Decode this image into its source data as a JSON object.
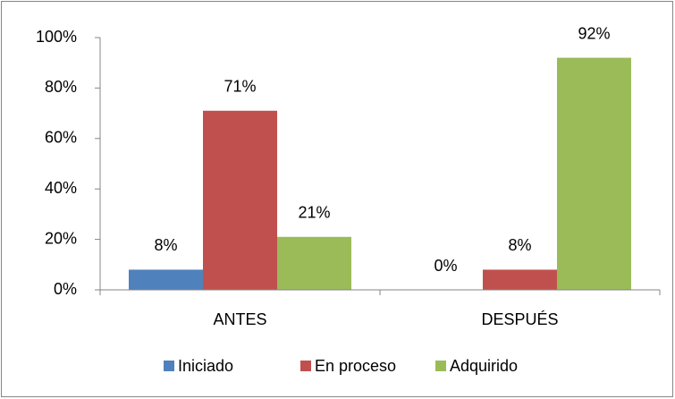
{
  "chart_data": {
    "type": "bar",
    "categories": [
      "ANTES",
      "DESPUÉS"
    ],
    "series": [
      {
        "name": "Iniciado",
        "color": "#4f81bd",
        "values": [
          8,
          0
        ],
        "value_labels": [
          "8%",
          "0%"
        ]
      },
      {
        "name": "En proceso",
        "color": "#c0504d",
        "values": [
          71,
          8
        ],
        "value_labels": [
          "71%",
          "8%"
        ]
      },
      {
        "name": "Adquirido",
        "color": "#9bbb59",
        "values": [
          21,
          92
        ],
        "value_labels": [
          "21%",
          "92%"
        ]
      }
    ],
    "ylim": [
      0,
      100
    ],
    "yticks": [
      {
        "value": 0,
        "label": "0%"
      },
      {
        "value": 20,
        "label": "20%"
      },
      {
        "value": 40,
        "label": "40%"
      },
      {
        "value": 60,
        "label": "60%"
      },
      {
        "value": 80,
        "label": "80%"
      },
      {
        "value": 100,
        "label": "100%"
      }
    ],
    "grid": false,
    "legend": "bottom"
  }
}
